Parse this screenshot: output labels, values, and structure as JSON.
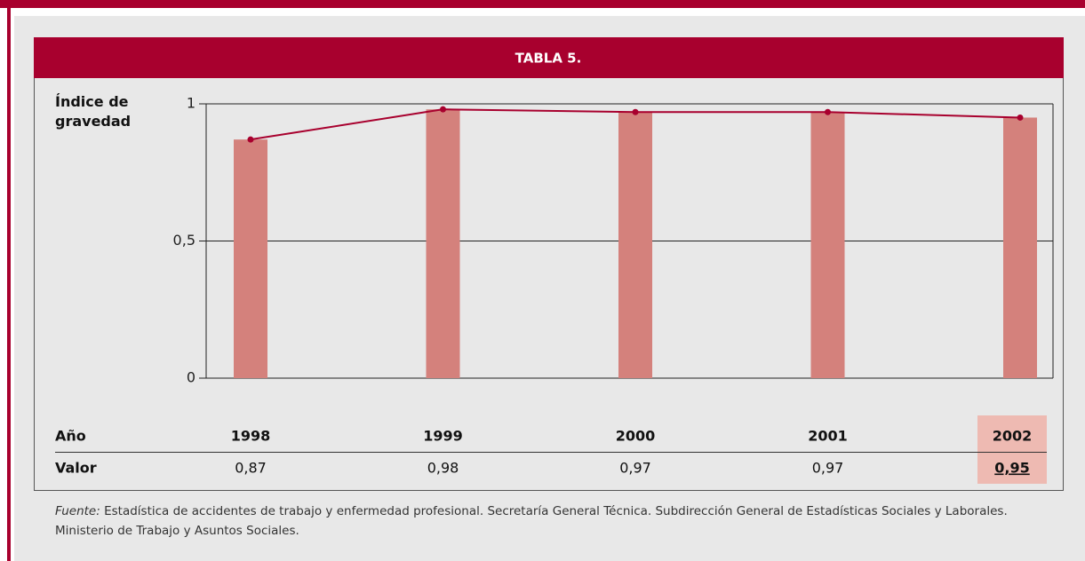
{
  "chart_data": {
    "type": "bar",
    "title": "TABLA 5.",
    "y_label": "Índice de gravedad",
    "categories": [
      "1998",
      "1999",
      "2000",
      "2001",
      "2002"
    ],
    "values": [
      0.87,
      0.98,
      0.97,
      0.97,
      0.95
    ],
    "value_labels": [
      "0,87",
      "0,98",
      "0,97",
      "0,97",
      "0,95"
    ],
    "color": "#d4817c",
    "line_color": "#a8002e",
    "ylim": [
      0,
      1
    ],
    "yticks": [
      0,
      {
        "value": 0.5,
        "label": "0,5"
      },
      1
    ],
    "grid": true,
    "row_labels": [
      "Año",
      "Valor"
    ],
    "source_label": "Fuente:",
    "source": "Estadística de accidentes de trabajo y enfermedad profesional. Secretaría General Técnica. Subdirección General de Estadísticas Sociales y Laborales. Ministerio de Trabajo y Asuntos Sociales."
  }
}
